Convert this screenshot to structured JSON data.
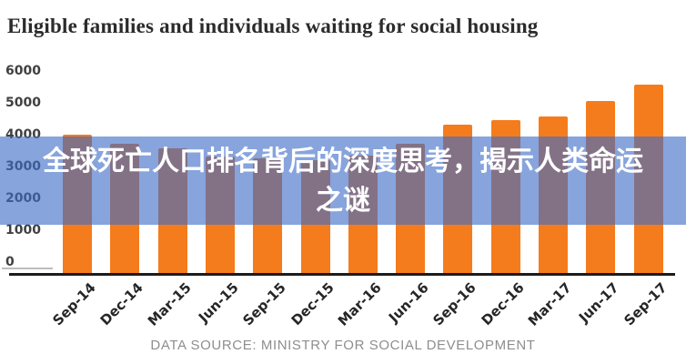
{
  "chart_data": {
    "type": "bar",
    "title": "Eligible families and individuals waiting for social housing",
    "categories": [
      "Sep-14",
      "Dec-14",
      "Mar-15",
      "Jun-15",
      "Sep-15",
      "Dec-15",
      "Mar-16",
      "Jun-16",
      "Sep-16",
      "Dec-16",
      "Mar-17",
      "Jun-17",
      "Sep-17"
    ],
    "values": [
      4100,
      3850,
      3700,
      3450,
      3400,
      3350,
      3500,
      3850,
      4400,
      4550,
      4650,
      5100,
      5600
    ],
    "xlabel": "",
    "ylabel": "",
    "ylim": [
      0,
      6000
    ],
    "yticks": [
      0,
      1000,
      2000,
      3000,
      4000,
      5000,
      6000
    ],
    "grid": false,
    "legend": false,
    "bar_color": "#f57c1c"
  },
  "caption": {
    "text": "DATA SOURCE: MINISTRY FOR SOCIAL DEVELOPMENT"
  },
  "overlay": {
    "line1": "全球死亡人口排名背后的深度思考，揭示人类命运",
    "line2": "之谜",
    "background": "rgba(62,108,200,0.62)",
    "text_color": "#ffffff"
  },
  "colors": {
    "background": "#ffffff",
    "bar": "#f57c1c",
    "axis_line": "#1c1c1c",
    "title_text": "#2b2b2b",
    "tick_text": "#404040",
    "caption_text": "#8e8e8e"
  }
}
